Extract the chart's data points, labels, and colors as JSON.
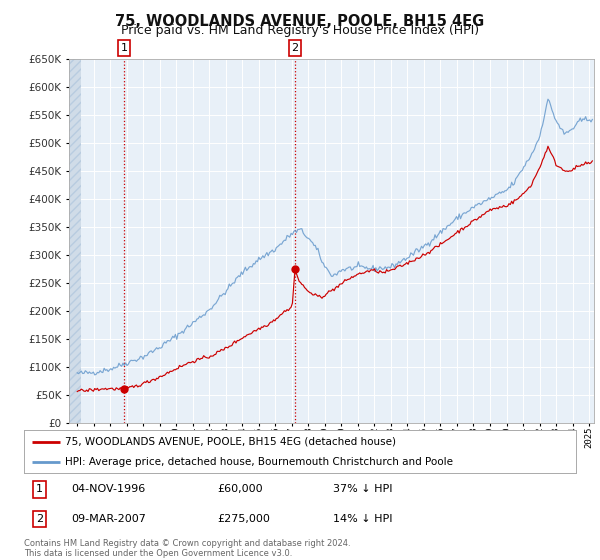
{
  "title": "75, WOODLANDS AVENUE, POOLE, BH15 4EG",
  "subtitle": "Price paid vs. HM Land Registry's House Price Index (HPI)",
  "footer": "Contains HM Land Registry data © Crown copyright and database right 2024.\nThis data is licensed under the Open Government Licence v3.0.",
  "legend_line1": "75, WOODLANDS AVENUE, POOLE, BH15 4EG (detached house)",
  "legend_line2": "HPI: Average price, detached house, Bournemouth Christchurch and Poole",
  "table": [
    {
      "num": "1",
      "date": "04-NOV-1996",
      "price": "£60,000",
      "hpi": "37% ↓ HPI"
    },
    {
      "num": "2",
      "date": "09-MAR-2007",
      "price": "£275,000",
      "hpi": "14% ↓ HPI"
    }
  ],
  "sale1_x": 1996.84,
  "sale1_y": 60000,
  "sale2_x": 2007.19,
  "sale2_y": 275000,
  "ylim": [
    0,
    650000
  ],
  "xlim_left": 1993.5,
  "xlim_right": 2025.3,
  "plot_bg": "#e8f0f8",
  "red_line": "#cc0000",
  "blue_line": "#6699cc",
  "grid_color": "#ffffff",
  "title_fontsize": 10.5,
  "subtitle_fontsize": 9
}
